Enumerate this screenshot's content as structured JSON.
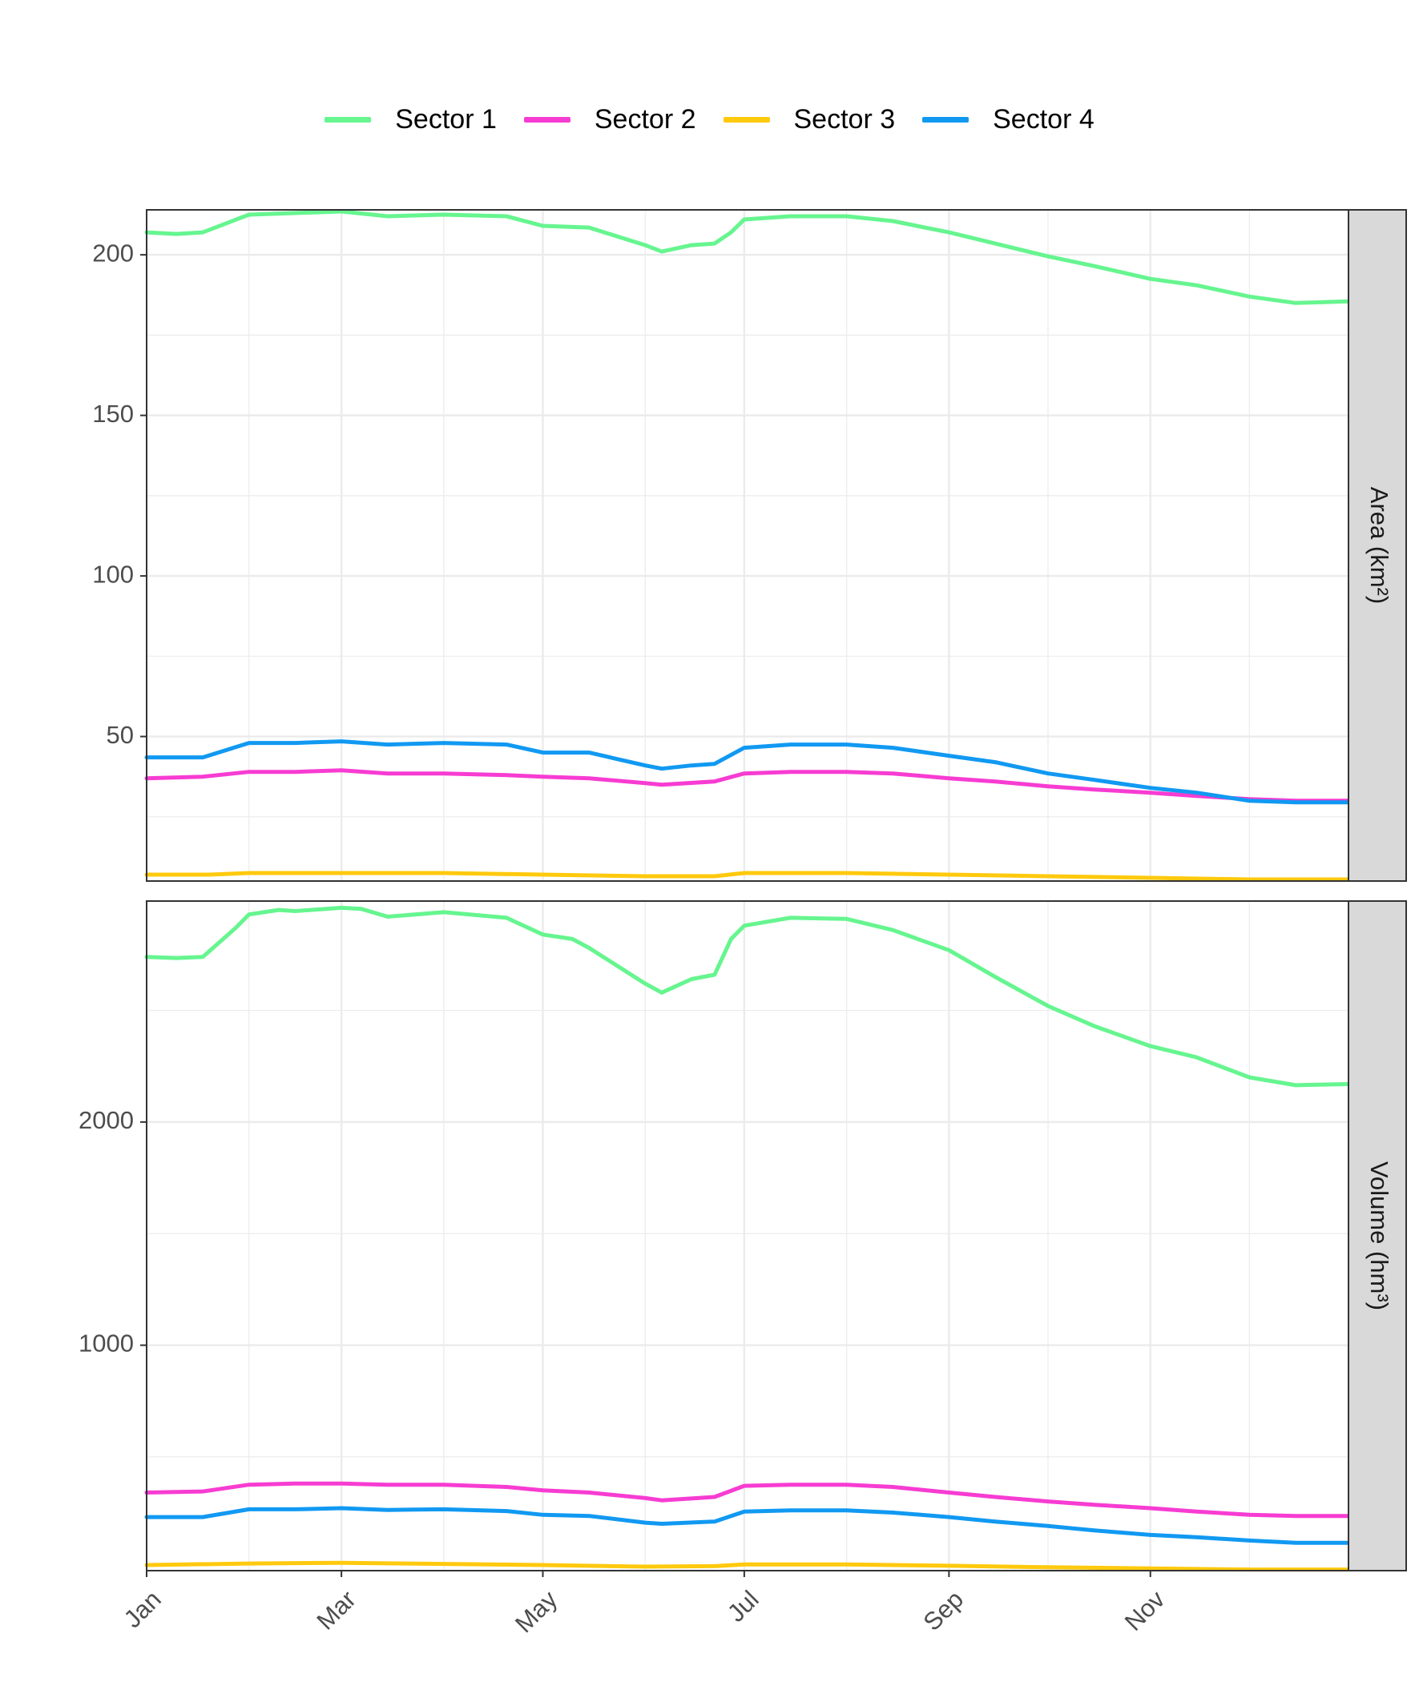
{
  "chart_data": {
    "type": "line",
    "facet_by": "measure",
    "legend": {
      "position": "top",
      "entries": [
        {
          "name": "Sector 1",
          "color": "#66F58F"
        },
        {
          "name": "Sector 2",
          "color": "#F73CD2"
        },
        {
          "name": "Sector 3",
          "color": "#FFC90D"
        },
        {
          "name": "Sector 4",
          "color": "#1199F2"
        }
      ]
    },
    "x_axis": {
      "type": "date",
      "range": [
        "2001-01-01",
        "2001-12-31"
      ],
      "tick_labels": [
        "Jan",
        "Mar",
        "May",
        "Jul",
        "Sep",
        "Nov"
      ],
      "tick_dates": [
        "2001-01-01",
        "2001-03-01",
        "2001-05-01",
        "2001-07-01",
        "2001-09-01",
        "2001-11-01"
      ]
    },
    "grid": true,
    "panels": [
      {
        "strip_label": "Area (km²)",
        "ylim": [
          5,
          214
        ],
        "y_ticks": [
          50,
          100,
          150,
          200
        ],
        "series": [
          {
            "name": "Sector 1",
            "points": [
              [
                "2001-01-01",
                207
              ],
              [
                "2001-01-10",
                206.5
              ],
              [
                "2001-01-18",
                207
              ],
              [
                "2001-02-01",
                212.5
              ],
              [
                "2001-02-15",
                213
              ],
              [
                "2001-03-01",
                213.5
              ],
              [
                "2001-03-15",
                212
              ],
              [
                "2001-04-01",
                212.5
              ],
              [
                "2001-04-20",
                212
              ],
              [
                "2001-05-01",
                209
              ],
              [
                "2001-05-15",
                208.5
              ],
              [
                "2001-06-01",
                203
              ],
              [
                "2001-06-06",
                201
              ],
              [
                "2001-06-15",
                203
              ],
              [
                "2001-06-22",
                203.5
              ],
              [
                "2001-06-27",
                207
              ],
              [
                "2001-07-01",
                211
              ],
              [
                "2001-07-15",
                212
              ],
              [
                "2001-08-01",
                212
              ],
              [
                "2001-08-15",
                210.5
              ],
              [
                "2001-09-01",
                207
              ],
              [
                "2001-09-15",
                203.5
              ],
              [
                "2001-10-01",
                199.5
              ],
              [
                "2001-10-15",
                196.5
              ],
              [
                "2001-11-01",
                192.5
              ],
              [
                "2001-11-15",
                190.5
              ],
              [
                "2001-12-01",
                187
              ],
              [
                "2001-12-15",
                185
              ],
              [
                "2001-12-31",
                185.5
              ]
            ]
          },
          {
            "name": "Sector 2",
            "points": [
              [
                "2001-01-01",
                37
              ],
              [
                "2001-01-18",
                37.5
              ],
              [
                "2001-02-01",
                39
              ],
              [
                "2001-02-15",
                39
              ],
              [
                "2001-03-01",
                39.5
              ],
              [
                "2001-03-15",
                38.5
              ],
              [
                "2001-04-01",
                38.5
              ],
              [
                "2001-04-20",
                38
              ],
              [
                "2001-05-01",
                37.5
              ],
              [
                "2001-05-15",
                37
              ],
              [
                "2001-06-01",
                35.5
              ],
              [
                "2001-06-06",
                35
              ],
              [
                "2001-06-22",
                36
              ],
              [
                "2001-07-01",
                38.5
              ],
              [
                "2001-07-15",
                39
              ],
              [
                "2001-08-01",
                39
              ],
              [
                "2001-08-15",
                38.5
              ],
              [
                "2001-09-01",
                37
              ],
              [
                "2001-09-15",
                36
              ],
              [
                "2001-10-01",
                34.5
              ],
              [
                "2001-10-15",
                33.5
              ],
              [
                "2001-11-01",
                32.5
              ],
              [
                "2001-11-15",
                31.5
              ],
              [
                "2001-12-01",
                30.5
              ],
              [
                "2001-12-15",
                30
              ],
              [
                "2001-12-31",
                30
              ]
            ]
          },
          {
            "name": "Sector 3",
            "points": [
              [
                "2001-01-01",
                7
              ],
              [
                "2001-01-20",
                7
              ],
              [
                "2001-02-01",
                7.5
              ],
              [
                "2001-03-01",
                7.5
              ],
              [
                "2001-04-01",
                7.5
              ],
              [
                "2001-05-01",
                7
              ],
              [
                "2001-06-01",
                6.5
              ],
              [
                "2001-06-22",
                6.5
              ],
              [
                "2001-07-01",
                7.5
              ],
              [
                "2001-08-01",
                7.5
              ],
              [
                "2001-09-01",
                7
              ],
              [
                "2001-10-01",
                6.5
              ],
              [
                "2001-11-01",
                6
              ],
              [
                "2001-12-01",
                5.5
              ],
              [
                "2001-12-31",
                5.5
              ]
            ]
          },
          {
            "name": "Sector 4",
            "points": [
              [
                "2001-01-01",
                43.5
              ],
              [
                "2001-01-18",
                43.5
              ],
              [
                "2001-02-01",
                48
              ],
              [
                "2001-02-15",
                48
              ],
              [
                "2001-03-01",
                48.5
              ],
              [
                "2001-03-15",
                47.5
              ],
              [
                "2001-04-01",
                48
              ],
              [
                "2001-04-20",
                47.5
              ],
              [
                "2001-05-01",
                45
              ],
              [
                "2001-05-15",
                45
              ],
              [
                "2001-06-01",
                41
              ],
              [
                "2001-06-06",
                40
              ],
              [
                "2001-06-15",
                41
              ],
              [
                "2001-06-22",
                41.5
              ],
              [
                "2001-07-01",
                46.5
              ],
              [
                "2001-07-15",
                47.5
              ],
              [
                "2001-08-01",
                47.5
              ],
              [
                "2001-08-15",
                46.5
              ],
              [
                "2001-09-01",
                44
              ],
              [
                "2001-09-15",
                42
              ],
              [
                "2001-10-01",
                38.5
              ],
              [
                "2001-10-15",
                36.5
              ],
              [
                "2001-11-01",
                34
              ],
              [
                "2001-11-15",
                32.5
              ],
              [
                "2001-12-01",
                30
              ],
              [
                "2001-12-15",
                29.5
              ],
              [
                "2001-12-31",
                29.5
              ]
            ]
          }
        ]
      },
      {
        "strip_label": "Volume (hm³)",
        "ylim": [
          -10,
          2990
        ],
        "y_ticks": [
          1000,
          2000
        ],
        "series": [
          {
            "name": "Sector 1",
            "points": [
              [
                "2001-01-01",
                2740
              ],
              [
                "2001-01-10",
                2735
              ],
              [
                "2001-01-18",
                2740
              ],
              [
                "2001-01-28",
                2870
              ],
              [
                "2001-02-01",
                2930
              ],
              [
                "2001-02-10",
                2950
              ],
              [
                "2001-02-15",
                2945
              ],
              [
                "2001-03-01",
                2960
              ],
              [
                "2001-03-07",
                2955
              ],
              [
                "2001-03-15",
                2920
              ],
              [
                "2001-04-01",
                2940
              ],
              [
                "2001-04-20",
                2915
              ],
              [
                "2001-05-01",
                2840
              ],
              [
                "2001-05-10",
                2820
              ],
              [
                "2001-05-15",
                2780
              ],
              [
                "2001-06-01",
                2620
              ],
              [
                "2001-06-06",
                2580
              ],
              [
                "2001-06-15",
                2640
              ],
              [
                "2001-06-22",
                2660
              ],
              [
                "2001-06-27",
                2820
              ],
              [
                "2001-07-01",
                2880
              ],
              [
                "2001-07-15",
                2915
              ],
              [
                "2001-08-01",
                2910
              ],
              [
                "2001-08-15",
                2860
              ],
              [
                "2001-09-01",
                2770
              ],
              [
                "2001-09-15",
                2650
              ],
              [
                "2001-10-01",
                2520
              ],
              [
                "2001-10-15",
                2430
              ],
              [
                "2001-11-01",
                2340
              ],
              [
                "2001-11-15",
                2290
              ],
              [
                "2001-12-01",
                2200
              ],
              [
                "2001-12-15",
                2165
              ],
              [
                "2001-12-31",
                2170
              ]
            ]
          },
          {
            "name": "Sector 2",
            "points": [
              [
                "2001-01-01",
                340
              ],
              [
                "2001-01-18",
                345
              ],
              [
                "2001-02-01",
                375
              ],
              [
                "2001-02-15",
                380
              ],
              [
                "2001-03-01",
                380
              ],
              [
                "2001-03-15",
                375
              ],
              [
                "2001-04-01",
                375
              ],
              [
                "2001-04-20",
                365
              ],
              [
                "2001-05-01",
                350
              ],
              [
                "2001-05-15",
                340
              ],
              [
                "2001-06-01",
                315
              ],
              [
                "2001-06-06",
                305
              ],
              [
                "2001-06-22",
                320
              ],
              [
                "2001-07-01",
                370
              ],
              [
                "2001-07-15",
                375
              ],
              [
                "2001-08-01",
                375
              ],
              [
                "2001-08-15",
                365
              ],
              [
                "2001-09-01",
                340
              ],
              [
                "2001-09-15",
                320
              ],
              [
                "2001-10-01",
                300
              ],
              [
                "2001-10-15",
                285
              ],
              [
                "2001-11-01",
                270
              ],
              [
                "2001-11-15",
                255
              ],
              [
                "2001-12-01",
                240
              ],
              [
                "2001-12-15",
                235
              ],
              [
                "2001-12-31",
                235
              ]
            ]
          },
          {
            "name": "Sector 3",
            "points": [
              [
                "2001-01-01",
                15
              ],
              [
                "2001-02-01",
                22
              ],
              [
                "2001-03-01",
                25
              ],
              [
                "2001-04-01",
                20
              ],
              [
                "2001-05-01",
                15
              ],
              [
                "2001-06-01",
                8
              ],
              [
                "2001-06-22",
                10
              ],
              [
                "2001-07-01",
                18
              ],
              [
                "2001-08-01",
                18
              ],
              [
                "2001-09-01",
                12
              ],
              [
                "2001-10-01",
                5
              ],
              [
                "2001-11-01",
                0
              ],
              [
                "2001-12-01",
                -5
              ],
              [
                "2001-12-31",
                -5
              ]
            ]
          },
          {
            "name": "Sector 4",
            "points": [
              [
                "2001-01-01",
                230
              ],
              [
                "2001-01-18",
                230
              ],
              [
                "2001-02-01",
                265
              ],
              [
                "2001-02-15",
                265
              ],
              [
                "2001-03-01",
                270
              ],
              [
                "2001-03-15",
                262
              ],
              [
                "2001-04-01",
                265
              ],
              [
                "2001-04-20",
                257
              ],
              [
                "2001-05-01",
                240
              ],
              [
                "2001-05-15",
                235
              ],
              [
                "2001-06-01",
                205
              ],
              [
                "2001-06-06",
                200
              ],
              [
                "2001-06-22",
                210
              ],
              [
                "2001-07-01",
                255
              ],
              [
                "2001-07-15",
                260
              ],
              [
                "2001-08-01",
                260
              ],
              [
                "2001-08-15",
                250
              ],
              [
                "2001-09-01",
                230
              ],
              [
                "2001-09-15",
                210
              ],
              [
                "2001-10-01",
                190
              ],
              [
                "2001-10-15",
                170
              ],
              [
                "2001-11-01",
                150
              ],
              [
                "2001-11-15",
                140
              ],
              [
                "2001-12-01",
                125
              ],
              [
                "2001-12-15",
                115
              ],
              [
                "2001-12-31",
                115
              ]
            ]
          }
        ]
      }
    ]
  }
}
